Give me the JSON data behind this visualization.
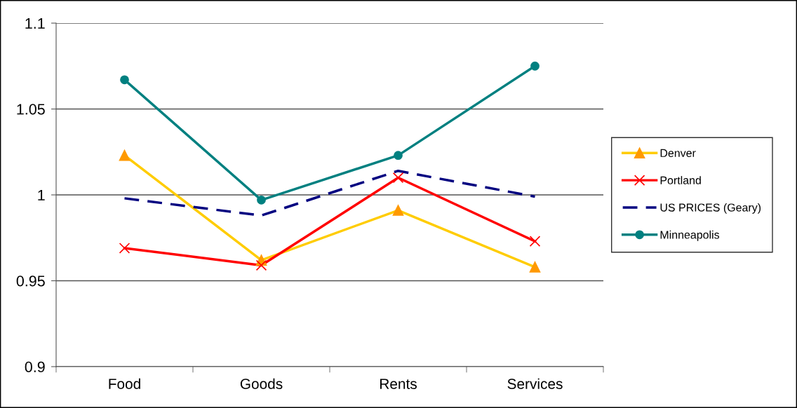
{
  "chart_data": {
    "type": "line",
    "categories": [
      "Food",
      "Goods",
      "Rents",
      "Services"
    ],
    "series": [
      {
        "name": "Denver",
        "color": "#ffcc00",
        "colors": [
          "#ff9900",
          "#ff9900",
          "#ff9900",
          "#ff9900"
        ],
        "marker": "triangle",
        "line_style": "solid",
        "values": [
          1.023,
          0.962,
          0.991,
          0.958
        ]
      },
      {
        "name": "Portland",
        "color": "#ff0000",
        "marker": "cross",
        "line_style": "solid",
        "values": [
          0.969,
          0.959,
          1.01,
          0.973
        ]
      },
      {
        "name": "US PRICES (Geary)",
        "color": "#000080",
        "marker": "none",
        "line_style": "dashed",
        "values": [
          0.998,
          0.988,
          1.014,
          0.999
        ]
      },
      {
        "name": "Minneapolis",
        "color": "#008080",
        "marker": "circle",
        "line_style": "solid",
        "values": [
          1.067,
          0.997,
          1.023,
          1.075
        ]
      }
    ],
    "ylim": [
      0.9,
      1.1
    ],
    "yticks": [
      0.9,
      0.95,
      1,
      1.05,
      1.1
    ],
    "grid": "y",
    "legend": "right"
  }
}
